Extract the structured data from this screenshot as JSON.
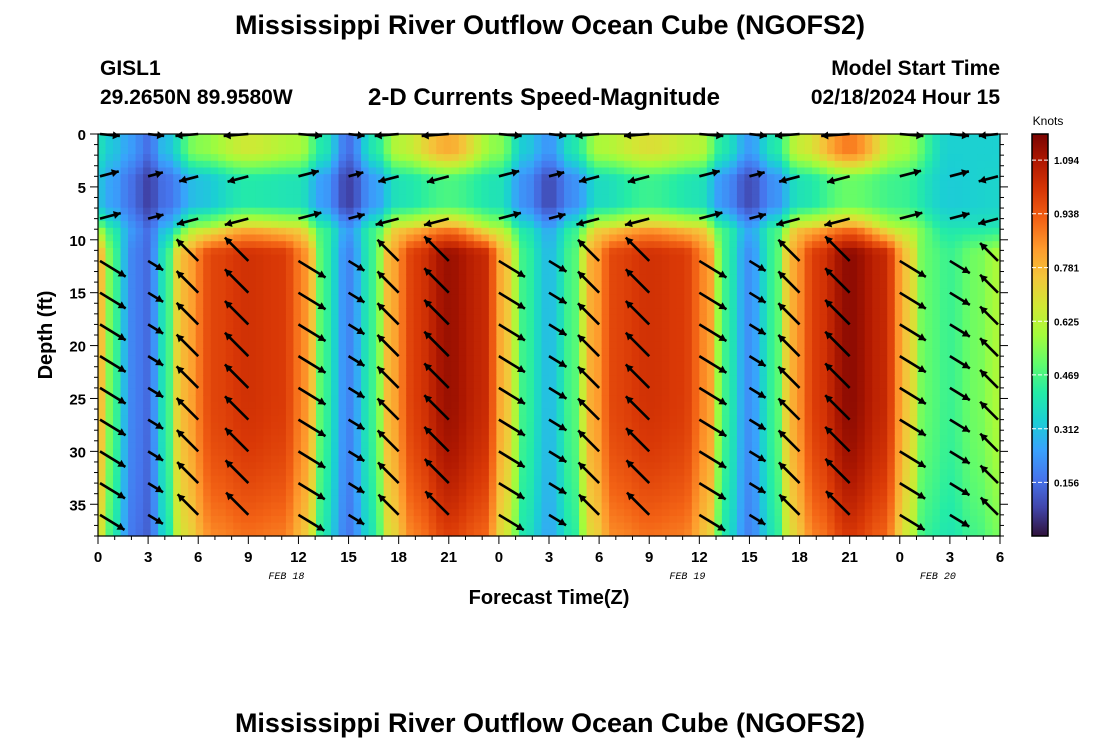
{
  "page": {
    "title": "Mississippi River Outflow Ocean Cube (NGOFS2)",
    "station": "GISL1",
    "coordinates": "29.2650N  89.9580W",
    "product": "2-D Currents Speed-Magnitude",
    "model_start_label": "Model Start Time",
    "model_start_value": "02/18/2024 Hour 15"
  },
  "chart_data": {
    "type": "heatmap",
    "title": "2-D Currents Speed-Magnitude",
    "xlabel": "Forecast Time(Z)",
    "ylabel": "Depth (ft)",
    "x_range_hours": [
      0,
      54
    ],
    "x_ticks": [
      {
        "h": 0,
        "label": "0"
      },
      {
        "h": 3,
        "label": "3"
      },
      {
        "h": 6,
        "label": "6"
      },
      {
        "h": 9,
        "label": "9"
      },
      {
        "h": 12,
        "label": "12"
      },
      {
        "h": 15,
        "label": "15"
      },
      {
        "h": 18,
        "label": "18"
      },
      {
        "h": 21,
        "label": "21"
      },
      {
        "h": 24,
        "label": "0"
      },
      {
        "h": 27,
        "label": "3"
      },
      {
        "h": 30,
        "label": "6"
      },
      {
        "h": 33,
        "label": "9"
      },
      {
        "h": 36,
        "label": "12"
      },
      {
        "h": 39,
        "label": "15"
      },
      {
        "h": 42,
        "label": "18"
      },
      {
        "h": 45,
        "label": "21"
      },
      {
        "h": 48,
        "label": "0"
      },
      {
        "h": 51,
        "label": "3"
      },
      {
        "h": 54,
        "label": "6"
      }
    ],
    "date_labels": [
      {
        "h": 12,
        "label": "FEB 18"
      },
      {
        "h": 36,
        "label": "FEB 19"
      },
      {
        "h": 51,
        "label": "FEB 20"
      }
    ],
    "ylim": [
      0,
      38
    ],
    "y_ticks": [
      0,
      5,
      10,
      15,
      20,
      25,
      30,
      35
    ],
    "colorbar": {
      "unit": "Knots",
      "min": 0.0,
      "max": 1.17,
      "ticks": [
        "1.094",
        "0.938",
        "0.781",
        "0.625",
        "0.469",
        "0.312",
        "0.156"
      ]
    },
    "colormap": [
      "#30123b",
      "#4145ab",
      "#4675ed",
      "#39a2fc",
      "#1bcfd4",
      "#24eca6",
      "#61fc6c",
      "#a4fc3b",
      "#d1e834",
      "#f3c63a",
      "#fe9b2d",
      "#f36315",
      "#d93806",
      "#b11901",
      "#7a0402"
    ],
    "layers": [
      {
        "depth_top": 0,
        "depth_bottom": 3,
        "speed_ft_sec": [
          [
            0,
            0.38
          ],
          [
            1,
            0.31
          ],
          [
            2,
            0.24
          ],
          [
            3,
            0.16
          ],
          [
            4,
            0.3
          ],
          [
            6,
            0.55
          ],
          [
            9,
            0.66
          ],
          [
            12,
            0.6
          ],
          [
            13.5,
            0.4
          ],
          [
            15,
            0.16
          ],
          [
            16.5,
            0.4
          ],
          [
            18,
            0.62
          ],
          [
            21,
            0.8
          ],
          [
            24,
            0.55
          ],
          [
            25.5,
            0.33
          ],
          [
            27,
            0.23
          ],
          [
            28.5,
            0.4
          ],
          [
            30,
            0.6
          ],
          [
            33,
            0.69
          ],
          [
            36,
            0.62
          ],
          [
            37.5,
            0.4
          ],
          [
            39,
            0.24
          ],
          [
            40.5,
            0.4
          ],
          [
            42,
            0.65
          ],
          [
            45,
            0.88
          ],
          [
            48,
            0.6
          ],
          [
            51,
            0.34
          ],
          [
            54,
            0.34
          ]
        ]
      },
      {
        "depth_top": 3,
        "depth_bottom": 8,
        "speed_ft_sec": [
          [
            0,
            0.31
          ],
          [
            1,
            0.24
          ],
          [
            2,
            0.16
          ],
          [
            3,
            0.08
          ],
          [
            4,
            0.16
          ],
          [
            6,
            0.31
          ],
          [
            9,
            0.41
          ],
          [
            12,
            0.39
          ],
          [
            13.5,
            0.24
          ],
          [
            15,
            0.08
          ],
          [
            16.5,
            0.24
          ],
          [
            18,
            0.39
          ],
          [
            21,
            0.47
          ],
          [
            24,
            0.39
          ],
          [
            25.5,
            0.22
          ],
          [
            27,
            0.1
          ],
          [
            28.5,
            0.22
          ],
          [
            30,
            0.37
          ],
          [
            33,
            0.45
          ],
          [
            36,
            0.39
          ],
          [
            37.5,
            0.22
          ],
          [
            39,
            0.1
          ],
          [
            40.5,
            0.22
          ],
          [
            42,
            0.39
          ],
          [
            45,
            0.51
          ],
          [
            48,
            0.45
          ],
          [
            51,
            0.33
          ],
          [
            54,
            0.35
          ]
        ]
      },
      {
        "depth_top": 8,
        "depth_bottom": 10,
        "speed_ft_sec": [
          [
            0,
            0.55
          ],
          [
            1,
            0.4
          ],
          [
            2,
            0.24
          ],
          [
            3,
            0.16
          ],
          [
            4,
            0.3
          ],
          [
            6,
            0.62
          ],
          [
            9,
            0.78
          ],
          [
            12,
            0.72
          ],
          [
            13.5,
            0.45
          ],
          [
            15,
            0.25
          ],
          [
            16.5,
            0.45
          ],
          [
            18,
            0.74
          ],
          [
            21,
            0.86
          ],
          [
            24,
            0.62
          ],
          [
            25.5,
            0.4
          ],
          [
            27,
            0.27
          ],
          [
            28.5,
            0.44
          ],
          [
            30,
            0.72
          ],
          [
            33,
            0.82
          ],
          [
            36,
            0.74
          ],
          [
            37.5,
            0.45
          ],
          [
            39,
            0.27
          ],
          [
            40.5,
            0.45
          ],
          [
            42,
            0.76
          ],
          [
            45,
            0.88
          ],
          [
            48,
            0.62
          ],
          [
            51,
            0.4
          ],
          [
            54,
            0.4
          ]
        ]
      },
      {
        "depth_top": 10,
        "depth_bottom": 38,
        "speed_ft_sec": [
          [
            0,
            0.8
          ],
          [
            1,
            0.45
          ],
          [
            2,
            0.2
          ],
          [
            3,
            0.15
          ],
          [
            4,
            0.4
          ],
          [
            5,
            0.78
          ],
          [
            7,
            0.98
          ],
          [
            9,
            1.02
          ],
          [
            11,
            1.0
          ],
          [
            12.5,
            0.85
          ],
          [
            13.5,
            0.45
          ],
          [
            15,
            0.2
          ],
          [
            16.5,
            0.45
          ],
          [
            17.5,
            0.8
          ],
          [
            19,
            1.0
          ],
          [
            21,
            1.12
          ],
          [
            23,
            1.05
          ],
          [
            24.5,
            0.75
          ],
          [
            25.5,
            0.45
          ],
          [
            27,
            0.3
          ],
          [
            28.5,
            0.48
          ],
          [
            29.5,
            0.8
          ],
          [
            31,
            0.98
          ],
          [
            33,
            1.02
          ],
          [
            35,
            1.0
          ],
          [
            36.5,
            0.85
          ],
          [
            37.5,
            0.45
          ],
          [
            39,
            0.22
          ],
          [
            40.5,
            0.45
          ],
          [
            41.5,
            0.8
          ],
          [
            43,
            1.0
          ],
          [
            45,
            1.14
          ],
          [
            47,
            1.05
          ],
          [
            48.5,
            0.75
          ],
          [
            49.5,
            0.5
          ],
          [
            51,
            0.45
          ],
          [
            52.5,
            0.52
          ],
          [
            54,
            0.6
          ]
        ]
      }
    ],
    "vectors": {
      "x_hours": [
        0,
        3,
        6,
        9,
        12,
        15,
        18,
        21,
        24,
        27,
        30,
        33,
        36,
        39,
        42,
        45,
        48,
        51,
        54
      ],
      "depths_ft": [
        0,
        4,
        8,
        12,
        15,
        18,
        21,
        24,
        27,
        30,
        33,
        36
      ],
      "direction_deg_by_phase": "flood = toward upper-left (~135°), ebb = toward lower-right (~-30°)",
      "surface_layer_direction": "mostly eastward / westward along the top rows"
    }
  }
}
